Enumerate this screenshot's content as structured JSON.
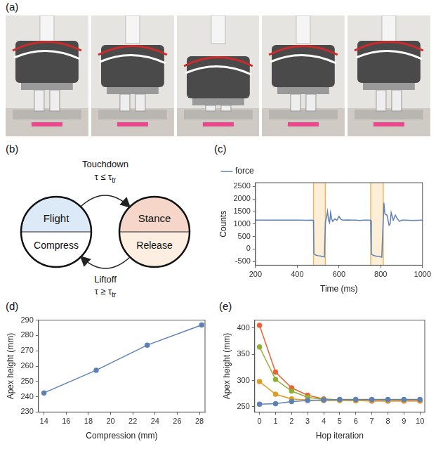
{
  "photos": {
    "label": "(a)",
    "frames": 5
  },
  "diagram": {
    "label": "(b)",
    "states": [
      {
        "name": "Flight",
        "action": "Compress",
        "color": "#dce9f6"
      },
      {
        "name": "Stance",
        "action": "Release",
        "color": "#f5d6c9"
      }
    ],
    "transitions": [
      {
        "event": "Touchdown",
        "condition": "τ ≤ τ",
        "subscript": "tr"
      },
      {
        "event": "Liftoff",
        "condition": "τ ≥ τ",
        "subscript": "tr"
      }
    ]
  },
  "chart_data": [
    {
      "panel": "(c)",
      "type": "line",
      "x_label": "Time (ms)",
      "y_label": "Counts",
      "x": [
        200,
        250,
        300,
        350,
        400,
        450,
        470,
        478,
        480,
        490,
        500,
        510,
        520,
        530,
        535,
        540,
        545,
        550,
        555,
        560,
        565,
        570,
        580,
        590,
        600,
        610,
        620,
        640,
        660,
        680,
        700,
        720,
        740,
        750,
        752,
        755,
        765,
        775,
        785,
        795,
        805,
        812,
        815,
        820,
        830,
        840,
        845,
        850,
        860,
        870,
        880,
        890,
        900,
        920,
        950,
        1000
      ],
      "series": [
        {
          "name": "force",
          "color": "#5e81b5",
          "values": [
            1150,
            1150,
            1155,
            1150,
            1150,
            1145,
            1150,
            1140,
            -200,
            -250,
            -270,
            -280,
            -300,
            -320,
            1100,
            1250,
            1500,
            1150,
            1050,
            1450,
            1200,
            1100,
            1200,
            1150,
            1300,
            1180,
            1150,
            1160,
            1150,
            1150,
            1140,
            1150,
            1150,
            1150,
            1140,
            -200,
            -260,
            -280,
            -300,
            -310,
            -330,
            1200,
            1850,
            1400,
            1350,
            950,
            1000,
            1450,
            1150,
            1350,
            1200,
            1100,
            1150,
            1150,
            1140,
            1150
          ]
        }
      ],
      "highlight_ranges": [
        [
          478,
          535
        ],
        [
          752,
          812
        ]
      ],
      "xlim": [
        200,
        1000
      ],
      "xticks": [
        200,
        400,
        600,
        800,
        1000
      ],
      "ylim": [
        -650,
        2650
      ],
      "yticks": [
        -500,
        0,
        500,
        1000,
        1500,
        2000,
        2500
      ],
      "legend": "top-left",
      "grid": false,
      "marker": "none"
    },
    {
      "panel": "(d)",
      "type": "scatter",
      "x_label": "Compression (mm)",
      "y_label": "Apex height (mm)",
      "x": [
        14,
        18.7,
        23.3,
        28.2
      ],
      "series": [
        {
          "color": "#5e81b5",
          "values": [
            242.5,
            257.3,
            273.7,
            286.8
          ],
          "errors": [
            0.3,
            0.4,
            0.4,
            0.6
          ]
        }
      ],
      "xlim": [
        13.5,
        28.5
      ],
      "xticks": [
        14,
        16,
        18,
        20,
        22,
        24,
        26,
        28
      ],
      "ylim": [
        230,
        290
      ],
      "yticks": [
        230,
        240,
        250,
        260,
        270,
        280,
        290
      ],
      "grid": false,
      "marker": "circle",
      "line_style": "solid"
    },
    {
      "panel": "(e)",
      "type": "line",
      "x_label": "Hop iteration",
      "y_label": "Apex height (mm)",
      "x": [
        0,
        1,
        2,
        3,
        4,
        5,
        6,
        7,
        8,
        9,
        10
      ],
      "series": [
        {
          "color": "#5e81b5",
          "values": [
            255,
            256,
            260,
            262,
            263,
            264,
            264,
            264,
            264,
            264,
            264
          ]
        },
        {
          "color": "#e19c24",
          "values": [
            298,
            274,
            265,
            263,
            262,
            262,
            262,
            262,
            262,
            262,
            262
          ]
        },
        {
          "color": "#8fb032",
          "values": [
            364,
            302,
            280,
            268,
            264,
            263,
            262,
            262,
            262,
            262,
            262
          ]
        },
        {
          "color": "#eb6235",
          "values": [
            405,
            316,
            286,
            272,
            265,
            263,
            262,
            261,
            261,
            261,
            261
          ]
        }
      ],
      "xlim": [
        -0.3,
        10.3
      ],
      "xticks": [
        0,
        1,
        2,
        3,
        4,
        5,
        6,
        7,
        8,
        9,
        10
      ],
      "ylim": [
        240,
        415
      ],
      "yticks": [
        250,
        300,
        350,
        400
      ],
      "grid": false,
      "marker": "circle"
    }
  ]
}
